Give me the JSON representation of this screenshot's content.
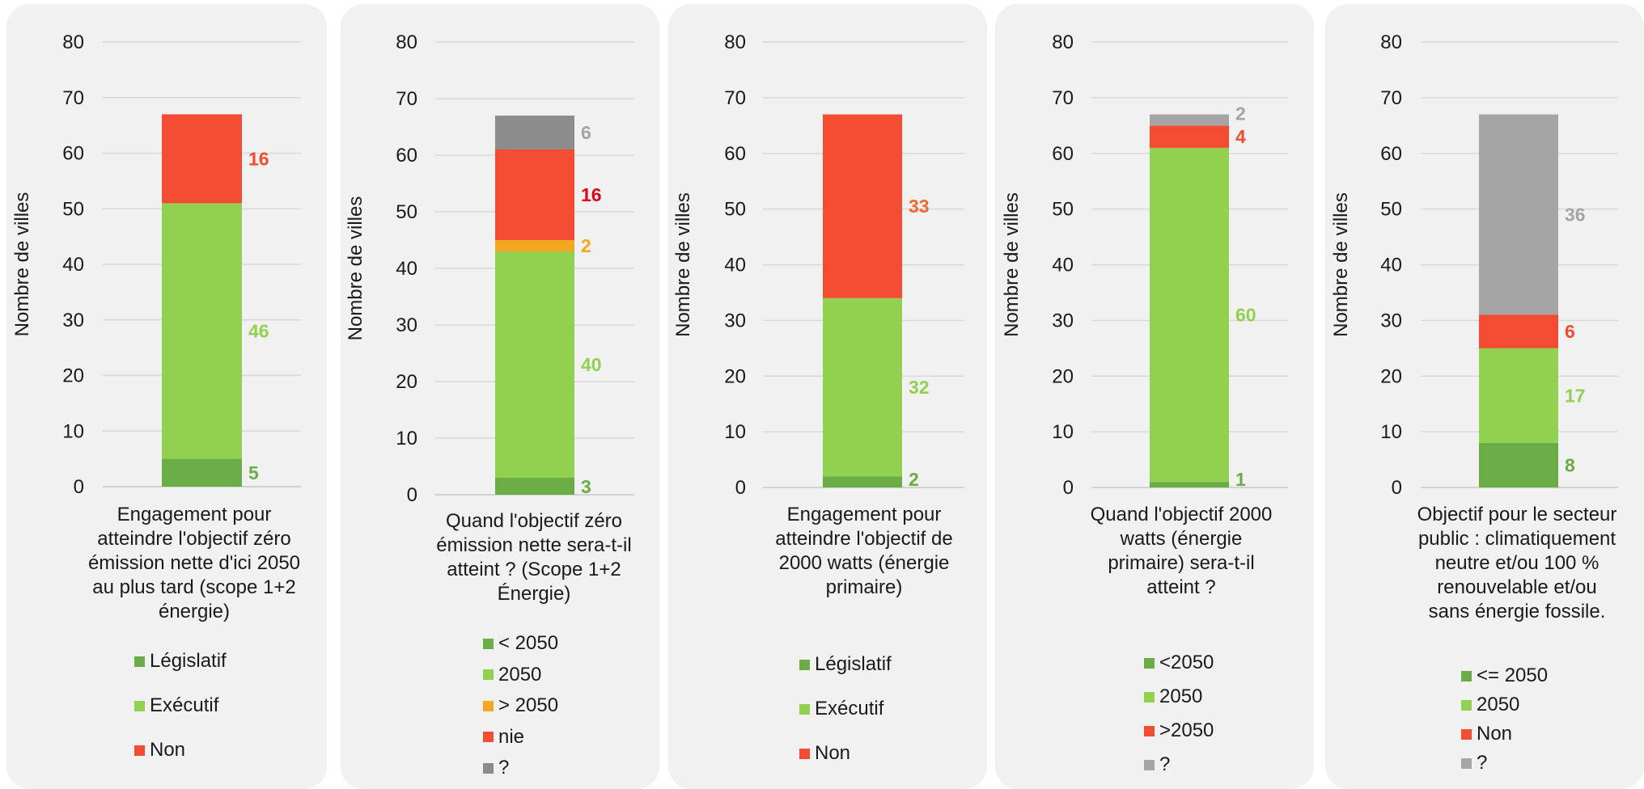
{
  "chart_data": [
    {
      "type": "bar",
      "stacked": true,
      "title": "Engagement pour atteindre l'objectif zéro émission nette d'ici 2050 au plus tard (scope 1+2 énergie)",
      "ylabel": "Nombre de villes",
      "ylim": [
        0,
        80
      ],
      "yticks": [
        "0",
        "10",
        "20",
        "30",
        "40",
        "50",
        "60",
        "70",
        "80"
      ],
      "grid": true,
      "legend_position": "bottom",
      "series": [
        {
          "name": "Législatif",
          "value": 5,
          "color": "#6aac46",
          "label_color": "#6aac46"
        },
        {
          "name": "Exécutif",
          "value": 46,
          "color": "#92d050",
          "label_color": "#92d050"
        },
        {
          "name": "Non",
          "value": 16,
          "color": "#f44b33",
          "label_color": "#f44b33"
        }
      ]
    },
    {
      "type": "bar",
      "stacked": true,
      "title": "Quand l'objectif zéro émission nette sera-t-il atteint ? (Scope 1+2 Énergie)",
      "ylabel": "Nombre de villes",
      "ylim": [
        0,
        80
      ],
      "yticks": [
        "0",
        "10",
        "20",
        "30",
        "40",
        "50",
        "60",
        "70",
        "80"
      ],
      "grid": true,
      "legend_position": "bottom",
      "series": [
        {
          "name": "< 2050",
          "value": 3,
          "color": "#6aac46",
          "label_color": "#6aac46"
        },
        {
          "name": "2050",
          "value": 40,
          "color": "#92d050",
          "label_color": "#92d050"
        },
        {
          "name": "> 2050",
          "value": 2,
          "color": "#f5a623",
          "label_color": "#f5a623"
        },
        {
          "name": "nie",
          "value": 16,
          "color": "#f44b33",
          "label_color": "#e0001b"
        },
        {
          "name": "?",
          "value": 6,
          "color": "#8c8c8c",
          "label_color": "#a5a5a5"
        }
      ]
    },
    {
      "type": "bar",
      "stacked": true,
      "title": "Engagement pour atteindre l'objectif de 2000 watts (énergie primaire)",
      "ylabel": "Nombre de villes",
      "ylim": [
        0,
        80
      ],
      "yticks": [
        "0",
        "10",
        "20",
        "30",
        "40",
        "50",
        "60",
        "70",
        "80"
      ],
      "grid": true,
      "legend_position": "bottom",
      "series": [
        {
          "name": "Législatif",
          "value": 2,
          "color": "#6aac46",
          "label_color": "#6aac46"
        },
        {
          "name": "Exécutif",
          "value": 32,
          "color": "#92d050",
          "label_color": "#92d050"
        },
        {
          "name": "Non",
          "value": 33,
          "color": "#f44b33",
          "label_color": "#f2672b"
        }
      ]
    },
    {
      "type": "bar",
      "stacked": true,
      "title": "Quand l'objectif 2000 watts (énergie primaire) sera-t-il atteint ?",
      "ylabel": "Nombre de villes",
      "ylim": [
        0,
        80
      ],
      "yticks": [
        "0",
        "10",
        "20",
        "30",
        "40",
        "50",
        "60",
        "70",
        "80"
      ],
      "grid": true,
      "legend_position": "bottom",
      "series": [
        {
          "name": "<2050",
          "value": 1,
          "color": "#6aac46",
          "label_color": "#6aac46"
        },
        {
          "name": "2050",
          "value": 60,
          "color": "#92d050",
          "label_color": "#92d050"
        },
        {
          "name": ">2050",
          "value": 4,
          "color": "#f44b33",
          "label_color": "#f44b33"
        },
        {
          "name": "?",
          "value": 2,
          "color": "#a5a5a5",
          "label_color": "#a5a5a5"
        }
      ]
    },
    {
      "type": "bar",
      "stacked": true,
      "title": "Objectif pour le secteur public : climatiquement neutre et/ou 100 % renouvelable et/ou sans énergie fossile.",
      "ylabel": "Nombre de villes",
      "ylim": [
        0,
        80
      ],
      "yticks": [
        "0",
        "10",
        "20",
        "30",
        "40",
        "50",
        "60",
        "70",
        "80"
      ],
      "grid": true,
      "legend_position": "bottom",
      "series": [
        {
          "name": "<= 2050",
          "value": 8,
          "color": "#6aac46",
          "label_color": "#6aac46"
        },
        {
          "name": "2050",
          "value": 17,
          "color": "#92d050",
          "label_color": "#92d050"
        },
        {
          "name": "Non",
          "value": 6,
          "color": "#f44b33",
          "label_color": "#f44b33"
        },
        {
          "name": "?",
          "value": 36,
          "color": "#a5a5a5",
          "label_color": "#a5a5a5"
        }
      ]
    }
  ]
}
